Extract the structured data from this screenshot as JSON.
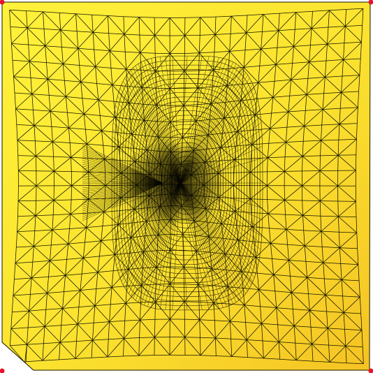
{
  "diagram": {
    "type": "triangle-mesh",
    "colors": {
      "background": "#ffffff",
      "fill_light": "#fff23a",
      "fill_dark": "#f5c323",
      "edge": "#141400",
      "corner_marker": "#e8122b"
    },
    "corner_markers": [
      "top-left-marker",
      "top-right-marker",
      "bottom-left-marker",
      "bottom-right-marker"
    ]
  }
}
